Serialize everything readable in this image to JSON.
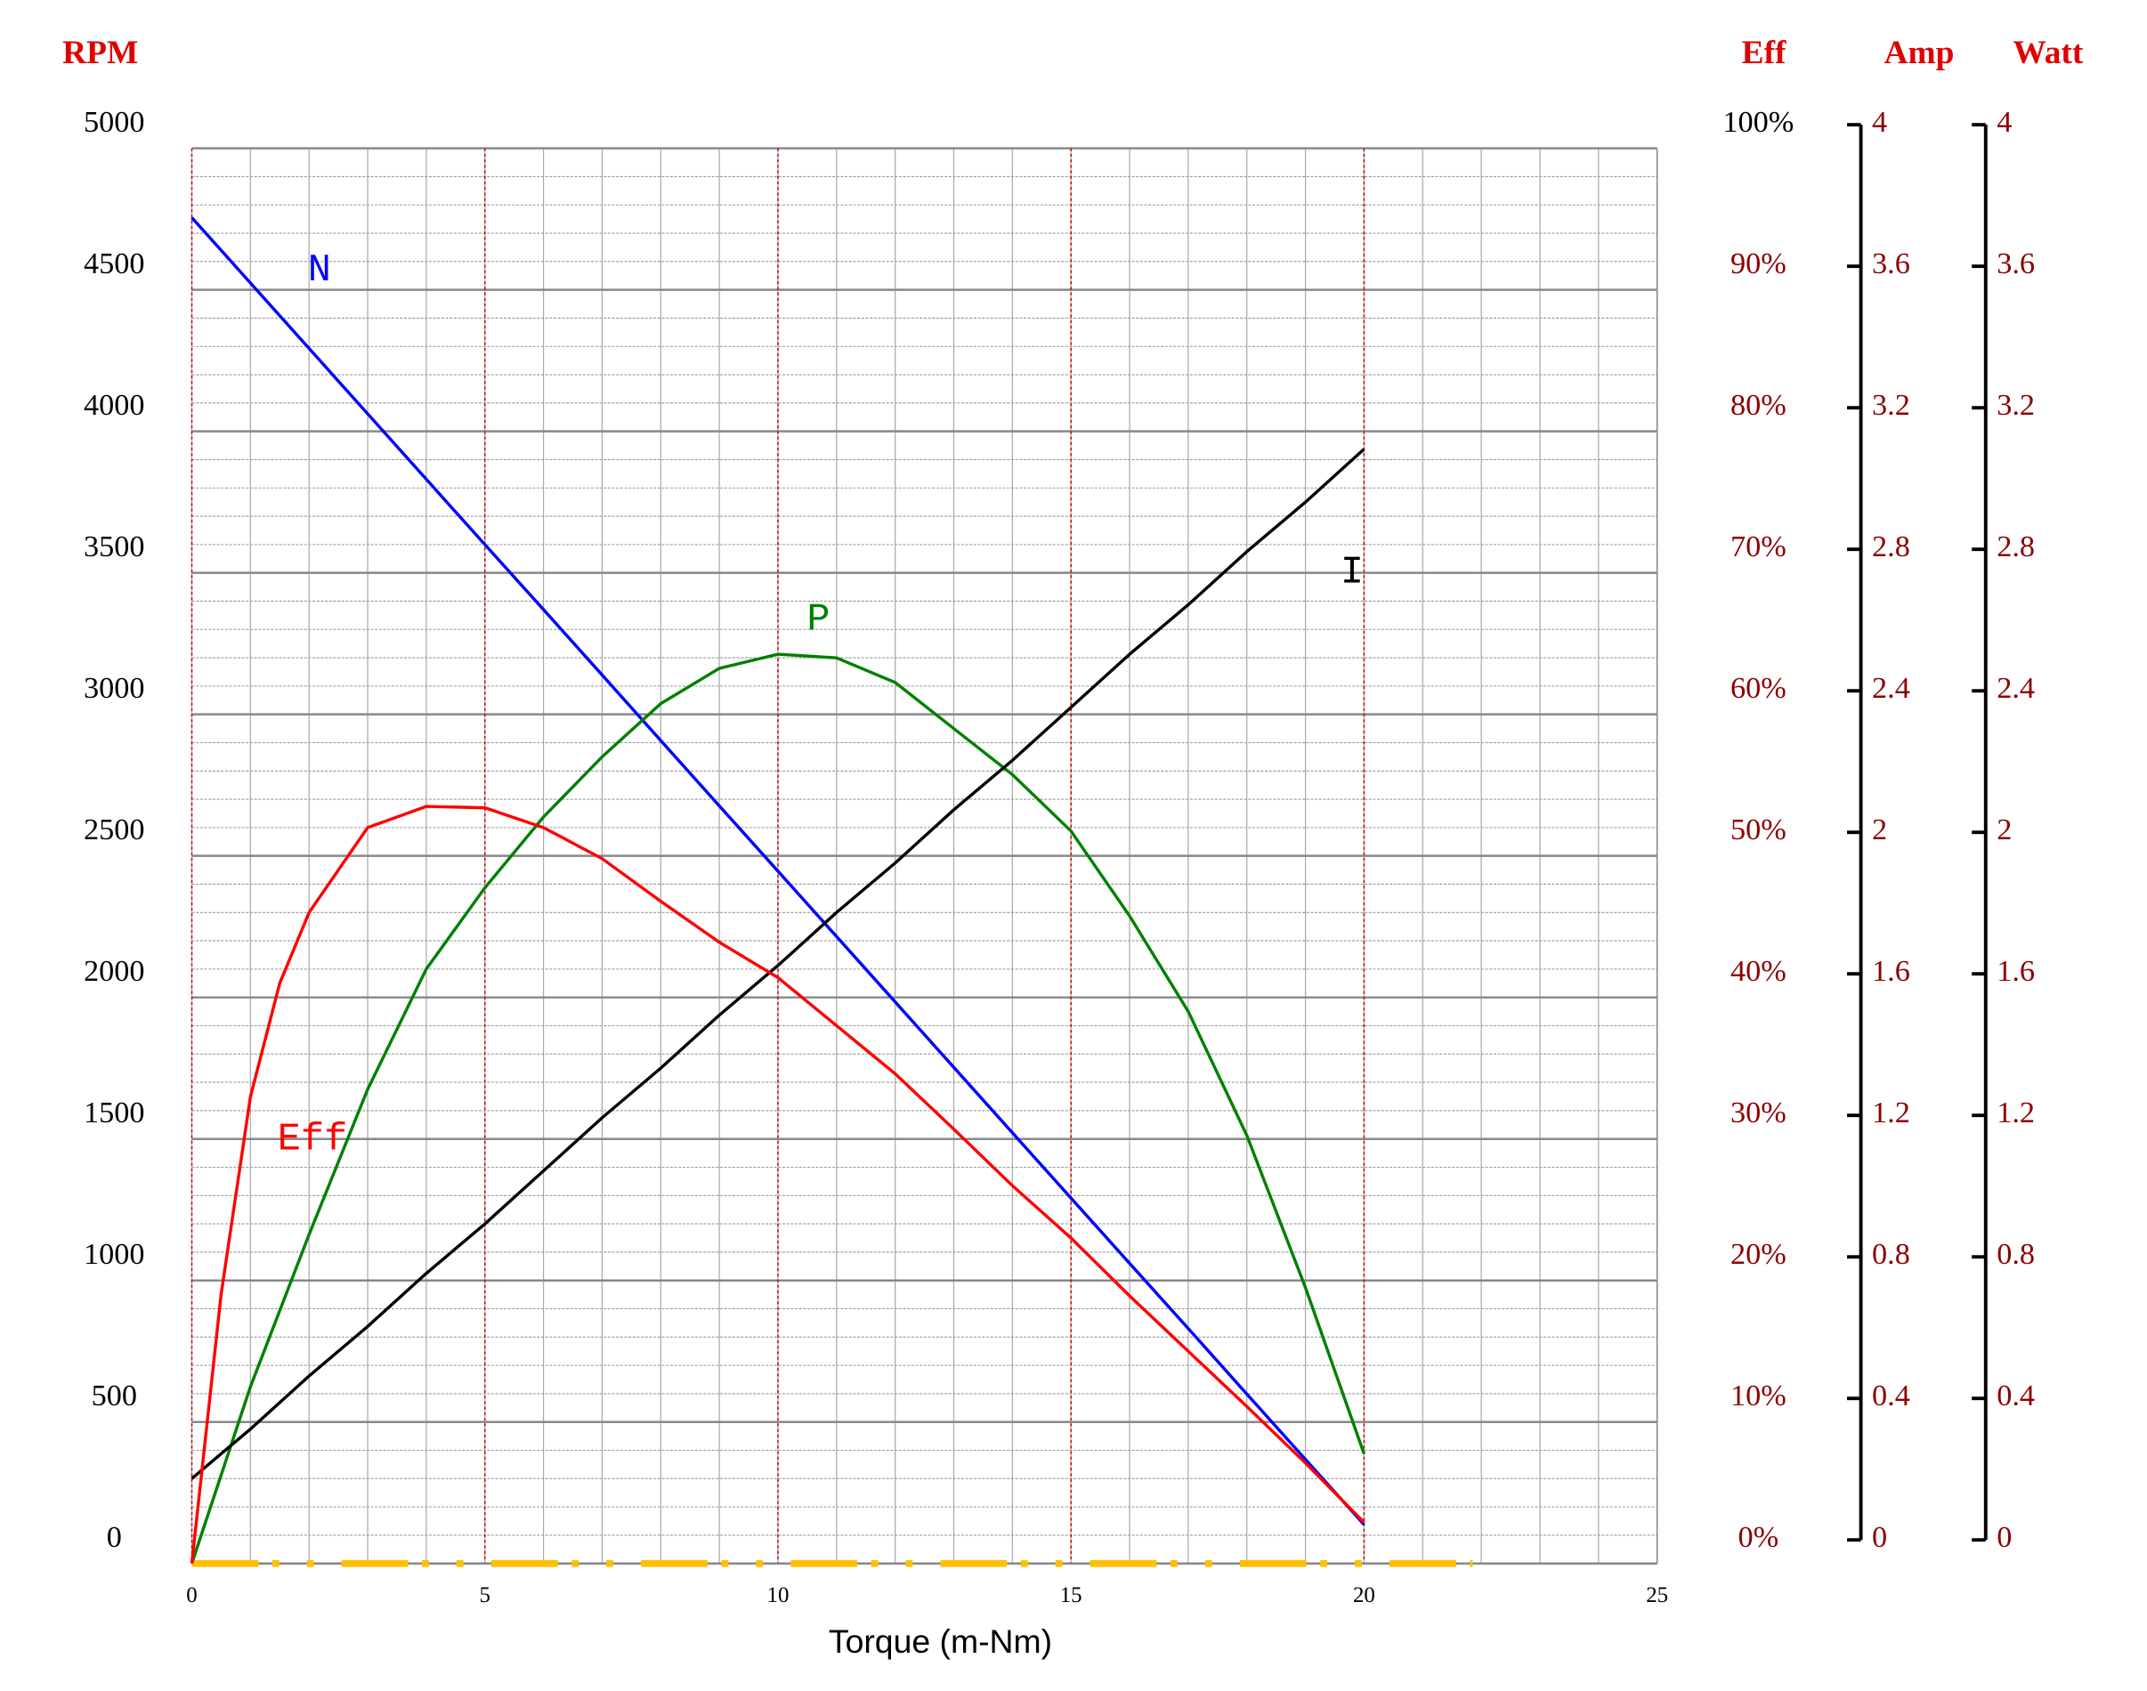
{
  "chart_data": {
    "type": "line",
    "xlabel": "Torque (m-Nm)",
    "ylabel": "RPM",
    "y2label": "Eff",
    "y3label": "Amp",
    "y4label": "Watt",
    "xlim": [
      0,
      25
    ],
    "xticks": [
      0,
      5,
      10,
      15,
      20,
      25
    ],
    "ylim": [
      0,
      5000
    ],
    "yticks": [
      0,
      500,
      1000,
      1500,
      2000,
      2500,
      3000,
      3500,
      4000,
      4500,
      5000
    ],
    "y2lim": [
      0,
      100
    ],
    "y2ticks": [
      {
        "value": 0,
        "label": "0%"
      },
      {
        "value": 10,
        "label": "10%"
      },
      {
        "value": 20,
        "label": "20%"
      },
      {
        "value": 30,
        "label": "30%"
      },
      {
        "value": 40,
        "label": "40%"
      },
      {
        "value": 50,
        "label": "50%"
      },
      {
        "value": 60,
        "label": "60%"
      },
      {
        "value": 70,
        "label": "70%"
      },
      {
        "value": 80,
        "label": "80%"
      },
      {
        "value": 90,
        "label": "90%"
      },
      {
        "value": 100,
        "label": "100%"
      }
    ],
    "y3lim": [
      0,
      4
    ],
    "y3ticks": [
      0,
      0.4,
      0.8,
      1.2,
      1.6,
      2,
      2.4,
      2.8,
      3.2,
      3.6,
      4
    ],
    "y4lim": [
      0,
      4
    ],
    "y4ticks": [
      0,
      0.4,
      0.8,
      1.2,
      1.6,
      2,
      2.4,
      2.8,
      3.2,
      3.6,
      4
    ],
    "grid": true,
    "minor_grid": true,
    "series": [
      {
        "name": "N",
        "color": "#0000ff",
        "axis": "y",
        "x": [
          0,
          1,
          2,
          3,
          4,
          5,
          6,
          7,
          8,
          9,
          10,
          11,
          12,
          13,
          14,
          15,
          16,
          17,
          18,
          19,
          20
        ],
        "values": [
          4755,
          4524,
          4293,
          4062,
          3831,
          3600,
          3370,
          3139,
          2908,
          2677,
          2446,
          2215,
          1984,
          1753,
          1522,
          1291,
          1060,
          830,
          599,
          368,
          137
        ]
      },
      {
        "name": "P",
        "color": "#008000",
        "axis": "y4",
        "x": [
          0,
          1,
          2,
          3,
          4,
          5,
          6,
          7,
          8,
          9,
          10,
          11,
          12,
          13,
          14,
          15,
          16,
          17,
          18,
          19,
          20
        ],
        "values": [
          0,
          0.5,
          0.93,
          1.34,
          1.68,
          1.91,
          2.11,
          2.28,
          2.43,
          2.53,
          2.57,
          2.56,
          2.49,
          2.36,
          2.23,
          2.07,
          1.83,
          1.56,
          1.21,
          0.78,
          0.31
        ]
      },
      {
        "name": "I",
        "color": "#000000",
        "axis": "y3",
        "x": [
          0,
          1,
          2,
          3,
          4,
          5,
          6,
          7,
          8,
          9,
          10,
          11,
          12,
          13,
          14,
          15,
          16,
          17,
          18,
          19,
          20
        ],
        "values": [
          0.24,
          0.38,
          0.53,
          0.67,
          0.82,
          0.96,
          1.11,
          1.26,
          1.4,
          1.55,
          1.69,
          1.84,
          1.98,
          2.13,
          2.27,
          2.42,
          2.57,
          2.71,
          2.86,
          3.0,
          3.15
        ]
      },
      {
        "name": "Eff",
        "color": "#ff0000",
        "axis": "y2",
        "x": [
          0,
          0.5,
          1,
          1.5,
          2,
          3,
          4,
          5,
          6,
          7,
          8,
          9,
          10,
          11,
          12,
          13,
          14,
          15,
          16,
          17,
          18,
          19,
          20
        ],
        "values": [
          0,
          19,
          33,
          41,
          46,
          52,
          53.5,
          53.4,
          52,
          49.8,
          46.8,
          43.9,
          41.4,
          38,
          34.6,
          30.7,
          26.7,
          23,
          18.9,
          15,
          11.1,
          7.1,
          2.9
        ]
      }
    ]
  }
}
